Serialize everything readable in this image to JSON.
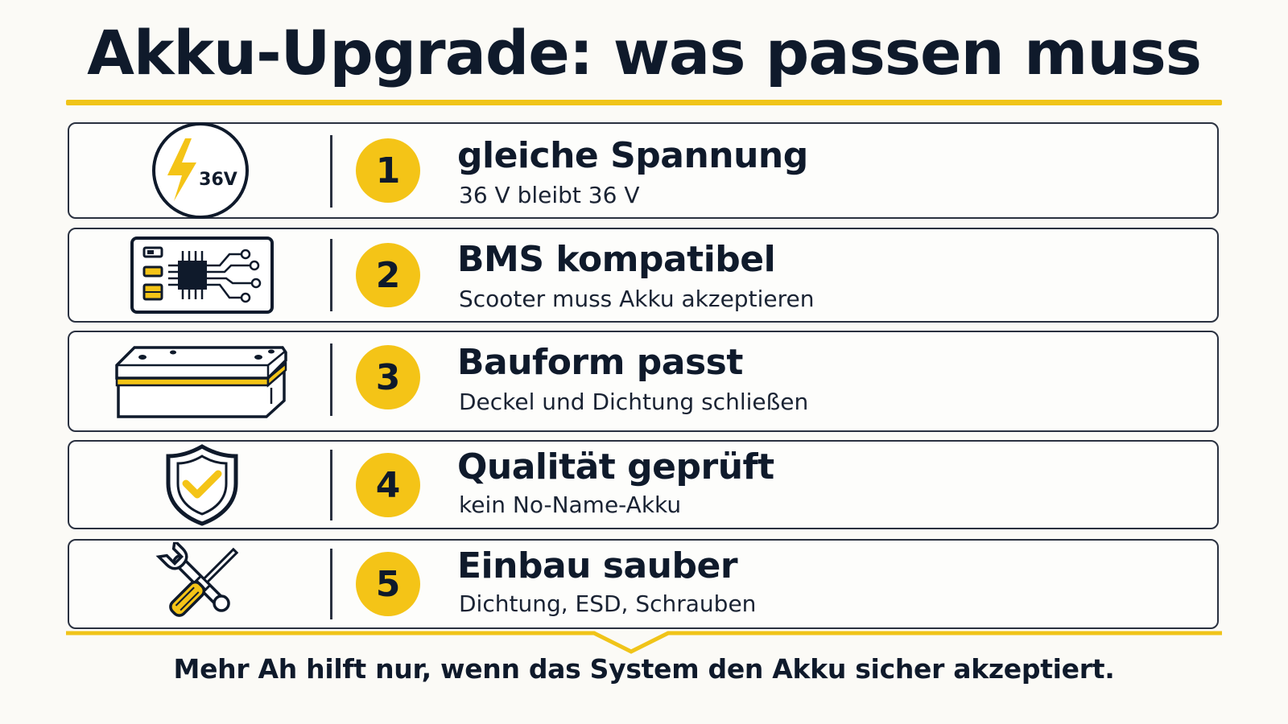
{
  "title": "Akku-Upgrade: was passen muss",
  "colors": {
    "accent": "#f4c417",
    "ink": "#0f1a2b",
    "background": "#fbfaf6"
  },
  "items": [
    {
      "number": "1",
      "heading": "gleiche Spannung",
      "sub": "36 V bleibt 36 V",
      "icon": "lightning-36v-icon",
      "icon_label": "36V"
    },
    {
      "number": "2",
      "heading": "BMS kompatibel",
      "sub": "Scooter muss Akku akzeptieren",
      "icon": "circuit-board-icon"
    },
    {
      "number": "3",
      "heading": "Bauform passt",
      "sub": "Deckel und Dichtung schließen",
      "icon": "battery-case-icon"
    },
    {
      "number": "4",
      "heading": "Qualität geprüft",
      "sub": "kein No-Name-Akku",
      "icon": "shield-check-icon"
    },
    {
      "number": "5",
      "heading": "Einbau sauber",
      "sub": "Dichtung, ESD, Schrauben",
      "icon": "tools-icon"
    }
  ],
  "footer": "Mehr Ah hilft nur, wenn das System den Akku sicher akzeptiert."
}
